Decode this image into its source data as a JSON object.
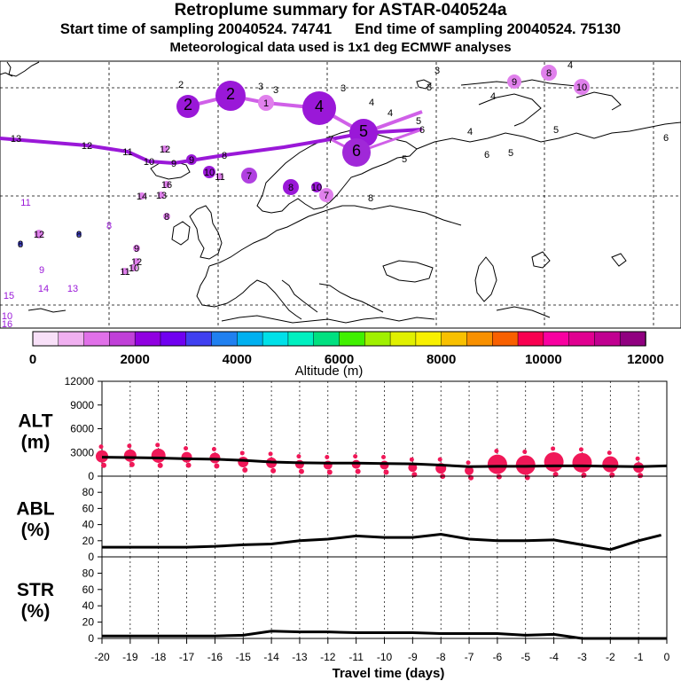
{
  "header": {
    "title": "Retroplume summary for ASTAR-040524a",
    "start_label": "Start time of sampling 20040524. 74741",
    "end_label": "End time of sampling 20040524. 75130",
    "met_label": "Meteorological data used is 1x1 deg ECMWF analyses"
  },
  "colorbar": {
    "label": "Altitude (m)",
    "ticks": [
      "0",
      "2000",
      "4000",
      "6000",
      "8000",
      "10000",
      "12000"
    ],
    "colors": [
      "#f8e0f8",
      "#f0b0f0",
      "#e070e8",
      "#c040d8",
      "#9000e0",
      "#7000f0",
      "#4040f0",
      "#2080f0",
      "#00b0f0",
      "#00e0e8",
      "#00f0c0",
      "#00e080",
      "#40f000",
      "#a0f000",
      "#e0f000",
      "#f8f000",
      "#f8c000",
      "#f89000",
      "#f86000",
      "#f80050",
      "#f800a0",
      "#e00090",
      "#c00090",
      "#900080"
    ]
  },
  "map": {
    "plume_labels": [
      {
        "t": "2",
        "x": 212,
        "y": 120,
        "r": 13,
        "c": "#9a18d8"
      },
      {
        "t": "2",
        "x": 260,
        "y": 108,
        "r": 17,
        "c": "#9a18d8"
      },
      {
        "t": "1",
        "x": 300,
        "y": 116,
        "r": 9,
        "c": "#e080ec"
      },
      {
        "t": "4",
        "x": 360,
        "y": 122,
        "r": 19,
        "c": "#9a18d8"
      },
      {
        "t": "5",
        "x": 410,
        "y": 150,
        "r": 16,
        "c": "#9a18d8"
      },
      {
        "t": "6",
        "x": 402,
        "y": 172,
        "r": 16,
        "c": "#a028d8"
      },
      {
        "t": "9",
        "x": 580,
        "y": 92,
        "r": 8,
        "c": "#e080ec"
      },
      {
        "t": "8",
        "x": 619,
        "y": 82,
        "r": 9,
        "c": "#e080ec"
      },
      {
        "t": "10",
        "x": 656,
        "y": 98,
        "r": 9,
        "c": "#e080ec"
      },
      {
        "t": "7",
        "x": 281,
        "y": 198,
        "r": 9,
        "c": "#b040e0"
      },
      {
        "t": "8",
        "x": 328,
        "y": 211,
        "r": 9,
        "c": "#9a18d8"
      },
      {
        "t": "7",
        "x": 368,
        "y": 220,
        "r": 8,
        "c": "#e080ec"
      },
      {
        "t": "10",
        "x": 236,
        "y": 194,
        "r": 7,
        "c": "#9a18d8"
      },
      {
        "t": "9",
        "x": 216,
        "y": 180,
        "r": 6,
        "c": "#9a18d8"
      },
      {
        "t": "10",
        "x": 357,
        "y": 211,
        "r": 6,
        "c": "#9a18d8"
      },
      {
        "t": "11",
        "x": 248,
        "y": 199,
        "r": 4,
        "c": "#e080ec"
      },
      {
        "t": "12",
        "x": 186,
        "y": 168,
        "r": 4,
        "c": "#e080ec"
      },
      {
        "t": "14",
        "x": 160,
        "y": 221,
        "r": 4,
        "c": "#e080ec"
      },
      {
        "t": "13",
        "x": 182,
        "y": 220,
        "r": 4,
        "c": "#e080ec"
      },
      {
        "t": "16",
        "x": 188,
        "y": 208,
        "r": 4,
        "c": "#e080ec"
      },
      {
        "t": "8",
        "x": 188,
        "y": 244,
        "r": 4,
        "c": "#e080ec"
      },
      {
        "t": "12",
        "x": 44,
        "y": 264,
        "r": 5,
        "c": "#e080ec"
      },
      {
        "t": "9",
        "x": 154,
        "y": 280,
        "r": 4,
        "c": "#e080ec"
      },
      {
        "t": "12",
        "x": 154,
        "y": 295,
        "r": 4,
        "c": "#e080ec"
      },
      {
        "t": "10",
        "x": 151,
        "y": 302,
        "r": 4,
        "c": "#e080ec"
      },
      {
        "t": "11",
        "x": 141,
        "y": 306,
        "r": 4,
        "c": "#e080ec"
      },
      {
        "t": "11",
        "x": 29,
        "y": 228,
        "r": 0,
        "c": "#9a18d8"
      },
      {
        "t": "8",
        "x": 23,
        "y": 275,
        "r": 3,
        "c": "#4040c0"
      },
      {
        "t": "8",
        "x": 89,
        "y": 264,
        "r": 3,
        "c": "#4040c0"
      },
      {
        "t": "8",
        "x": 123,
        "y": 254,
        "r": 0,
        "c": "#9a18d8"
      },
      {
        "t": "9",
        "x": 47,
        "y": 304,
        "r": 0,
        "c": "#9a18d8"
      },
      {
        "t": "14",
        "x": 49,
        "y": 325,
        "r": 0,
        "c": "#9a18d8"
      },
      {
        "t": "13",
        "x": 82,
        "y": 325,
        "r": 0,
        "c": "#9a18d8"
      },
      {
        "t": "15",
        "x": 10,
        "y": 333,
        "r": 0,
        "c": "#9a18d8"
      },
      {
        "t": "10",
        "x": 8,
        "y": 356,
        "r": 0,
        "c": "#9a18d8"
      },
      {
        "t": "16",
        "x": 8,
        "y": 365,
        "r": 0,
        "c": "#9a18d8"
      },
      {
        "t": "3",
        "x": 493,
        "y": 79,
        "r": 0,
        "c": "#000"
      },
      {
        "t": "4",
        "x": 643,
        "y": 73,
        "r": 0,
        "c": "#000"
      },
      {
        "t": "3",
        "x": 484,
        "y": 98,
        "r": 0,
        "c": "#000"
      },
      {
        "t": "4",
        "x": 556,
        "y": 108,
        "r": 0,
        "c": "#000"
      },
      {
        "t": "5",
        "x": 627,
        "y": 146,
        "r": 0,
        "c": "#000"
      },
      {
        "t": "6",
        "x": 751,
        "y": 155,
        "r": 0,
        "c": "#000"
      },
      {
        "t": "4",
        "x": 530,
        "y": 148,
        "r": 0,
        "c": "#000"
      },
      {
        "t": "6",
        "x": 549,
        "y": 174,
        "r": 0,
        "c": "#000"
      },
      {
        "t": "5",
        "x": 576,
        "y": 172,
        "r": 0,
        "c": "#000"
      },
      {
        "t": "5",
        "x": 456,
        "y": 179,
        "r": 0,
        "c": "#000"
      },
      {
        "t": "4",
        "x": 440,
        "y": 127,
        "r": 0,
        "c": "#000"
      },
      {
        "t": "5",
        "x": 472,
        "y": 136,
        "r": 0,
        "c": "#000"
      },
      {
        "t": "6",
        "x": 476,
        "y": 146,
        "r": 0,
        "c": "#000"
      },
      {
        "t": "2",
        "x": 204,
        "y": 95,
        "r": 0,
        "c": "#000"
      },
      {
        "t": "3",
        "x": 294,
        "y": 97,
        "r": 0,
        "c": "#000"
      },
      {
        "t": "3",
        "x": 311,
        "y": 101,
        "r": 0,
        "c": "#000"
      },
      {
        "t": "3",
        "x": 387,
        "y": 99,
        "r": 0,
        "c": "#000"
      },
      {
        "t": "4",
        "x": 419,
        "y": 115,
        "r": 0,
        "c": "#000"
      },
      {
        "t": "7",
        "x": 373,
        "y": 157,
        "r": 0,
        "c": "#000"
      },
      {
        "t": "8",
        "x": 418,
        "y": 223,
        "r": 0,
        "c": "#000"
      },
      {
        "t": "13",
        "x": 18,
        "y": 156,
        "r": 0,
        "c": "#000"
      },
      {
        "t": "12",
        "x": 98,
        "y": 164,
        "r": 0,
        "c": "#000"
      },
      {
        "t": "11",
        "x": 144,
        "y": 171,
        "r": 0,
        "c": "#000"
      },
      {
        "t": "10",
        "x": 168,
        "y": 182,
        "r": 0,
        "c": "#000"
      },
      {
        "t": "9",
        "x": 196,
        "y": 184,
        "r": 0,
        "c": "#000"
      },
      {
        "t": "8",
        "x": 253,
        "y": 175,
        "r": 0,
        "c": "#000"
      }
    ]
  },
  "charts": [
    {
      "name": "alt-panel",
      "label_line1": "ALT",
      "label_line2": "(m)",
      "ylim": [
        0,
        12000
      ],
      "yticks": [
        "0",
        "3000",
        "6000",
        "9000",
        "12000"
      ],
      "tick_values": [
        0,
        3000,
        6000,
        9000,
        12000
      ]
    },
    {
      "name": "abl-panel",
      "label_line1": "ABL",
      "label_line2": "(%)",
      "ylim": [
        0,
        100
      ],
      "yticks": [
        "0",
        "20",
        "40",
        "60",
        "80"
      ],
      "tick_values": [
        0,
        20,
        40,
        60,
        80
      ]
    },
    {
      "name": "str-panel",
      "label_line1": "STR",
      "label_line2": "(%)",
      "ylim": [
        0,
        100
      ],
      "yticks": [
        "0",
        "20",
        "40",
        "60",
        "80"
      ],
      "tick_values": [
        0,
        20,
        40,
        60,
        80
      ]
    }
  ],
  "chart_data": {
    "type": "line",
    "xlabel": "Travel time (days)",
    "xlim": [
      -20,
      0
    ],
    "x_ticks": [
      "-20",
      "-19",
      "-18",
      "-17",
      "-16",
      "-15",
      "-14",
      "-13",
      "-12",
      "-11",
      "-10",
      "-9",
      "-8",
      "-7",
      "-6",
      "-5",
      "-4",
      "-3",
      "-2",
      "-1",
      "0"
    ],
    "x_tick_values": [
      -20,
      -19,
      -18,
      -17,
      -16,
      -15,
      -14,
      -13,
      -12,
      -11,
      -10,
      -9,
      -8,
      -7,
      -6,
      -5,
      -4,
      -3,
      -2,
      -1,
      0
    ],
    "series": [
      {
        "name": "ALT",
        "unit": "m",
        "x": [
          -20,
          -19,
          -18,
          -17,
          -16,
          -15,
          -14,
          -13,
          -12,
          -11,
          -10,
          -9,
          -8,
          -7,
          -6,
          -5,
          -4,
          -3,
          -2,
          -1,
          0
        ],
        "values": [
          2400,
          2350,
          2300,
          2200,
          2150,
          2000,
          1800,
          1700,
          1650,
          1650,
          1600,
          1550,
          1400,
          1200,
          1250,
          1250,
          1300,
          1300,
          1250,
          1200,
          1300
        ]
      },
      {
        "name": "ABL",
        "unit": "%",
        "x": [
          -20,
          -19,
          -18,
          -17,
          -16,
          -15,
          -14,
          -13,
          -12,
          -11,
          -10,
          -9,
          -8,
          -7,
          -6,
          -5,
          -4,
          -3,
          -2,
          -1,
          -0.2
        ],
        "values": [
          12,
          12,
          12,
          12,
          13,
          15,
          16,
          20,
          22,
          26,
          24,
          24,
          28,
          22,
          20,
          20,
          21,
          15,
          9,
          20,
          27
        ]
      },
      {
        "name": "STR",
        "unit": "%",
        "x": [
          -20,
          -19,
          -18,
          -17,
          -16,
          -15,
          -14,
          -13,
          -12,
          -11,
          -10,
          -9,
          -8,
          -7,
          -6,
          -5,
          -4,
          -3,
          -2,
          -1,
          0
        ],
        "values": [
          3,
          3,
          3,
          3,
          3,
          4,
          9,
          8,
          8,
          7,
          7,
          7,
          6,
          6,
          6,
          4,
          5,
          0,
          0,
          0,
          0
        ]
      }
    ],
    "alt_clusters": [
      {
        "x": -20,
        "y": 2500,
        "size": 7
      },
      {
        "x": -19,
        "y": 2600,
        "size": 7
      },
      {
        "x": -18,
        "y": 2600,
        "size": 8
      },
      {
        "x": -17,
        "y": 2400,
        "size": 6
      },
      {
        "x": -16,
        "y": 2300,
        "size": 6
      },
      {
        "x": -15,
        "y": 1800,
        "size": 6
      },
      {
        "x": -14,
        "y": 1700,
        "size": 6
      },
      {
        "x": -13,
        "y": 1500,
        "size": 5
      },
      {
        "x": -12,
        "y": 1400,
        "size": 5
      },
      {
        "x": -11,
        "y": 1500,
        "size": 5
      },
      {
        "x": -10,
        "y": 1400,
        "size": 5
      },
      {
        "x": -9,
        "y": 1100,
        "size": 5
      },
      {
        "x": -8,
        "y": 1000,
        "size": 6
      },
      {
        "x": -7,
        "y": 700,
        "size": 5
      },
      {
        "x": -6,
        "y": 1500,
        "size": 11
      },
      {
        "x": -5,
        "y": 1400,
        "size": 11
      },
      {
        "x": -4,
        "y": 1800,
        "size": 11
      },
      {
        "x": -3,
        "y": 1700,
        "size": 11
      },
      {
        "x": -2,
        "y": 1500,
        "size": 9
      },
      {
        "x": -1,
        "y": 1100,
        "size": 6
      }
    ]
  }
}
